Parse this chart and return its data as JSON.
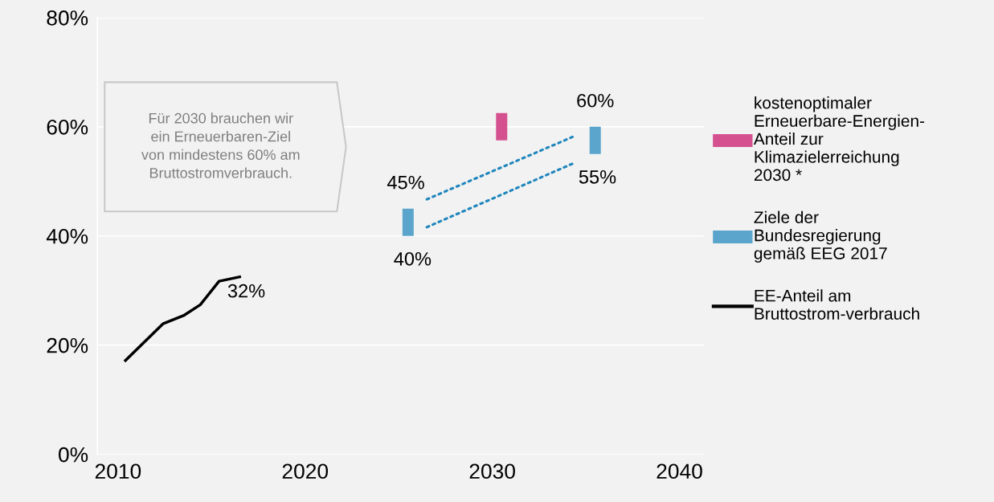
{
  "chart_data": {
    "type": "bar",
    "xlim": [
      2008.9,
      2041.3
    ],
    "ylim": [
      0,
      80
    ],
    "xticks": [
      2010,
      2020,
      2030,
      2040
    ],
    "yticks": [
      {
        "value": 0,
        "label": "0%"
      },
      {
        "value": 20,
        "label": "20%"
      },
      {
        "value": 40,
        "label": "40%"
      },
      {
        "value": 60,
        "label": "60%"
      },
      {
        "value": 80,
        "label": "80%"
      }
    ],
    "grid": "y",
    "legend": "right",
    "series": [
      {
        "name": "kostenoptimaler\nErneuerbare-Energien-\nAnteil zur\nKlimazielerreichung\n2030 *",
        "color": "#d4508f",
        "x": [
          2030.5
        ],
        "base": [
          57.5
        ],
        "values": [
          5
        ]
      },
      {
        "name": "Ziele der\nBundesregierung\ngemäß EEG 2017",
        "color": "#5ba5cc",
        "x": [
          2025.5,
          2035.5
        ],
        "base": [
          40,
          55
        ],
        "values": [
          5,
          5
        ]
      },
      {
        "type": "line",
        "name": "EE-Anteil am\nBruttostrom-verbrauch",
        "color": "#000000",
        "x": [
          2010.4,
          2012.4,
          2013.5,
          2014.4,
          2015.4,
          2016.5
        ],
        "values": [
          17.2,
          23.9,
          25.4,
          27.4,
          31.7,
          32.5
        ]
      },
      {
        "type": "line",
        "line_style": "dotted",
        "color": "#1f86bd",
        "x": [
          2026.5,
          2034.4
        ],
        "values": [
          46.7,
          58.3
        ]
      },
      {
        "type": "line",
        "line_style": "dotted",
        "color": "#1f86bd",
        "x": [
          2026.5,
          2034.4
        ],
        "values": [
          41.6,
          53.4
        ]
      }
    ],
    "annotations": [
      {
        "text": "32%",
        "x": 2016.5,
        "y": 32.5
      },
      {
        "text": "45%",
        "x": 2025.5,
        "y": 45
      },
      {
        "text": "40%",
        "x": 2025.5,
        "y": 40
      },
      {
        "text": "60%",
        "x": 2035.5,
        "y": 60
      },
      {
        "text": "55%",
        "x": 2035.5,
        "y": 55
      },
      "Für 2030 brauchen wir\nein Erneuerbaren-Ziel\nvon mindestens 60% am\nBruttostromverbrauch."
    ]
  }
}
